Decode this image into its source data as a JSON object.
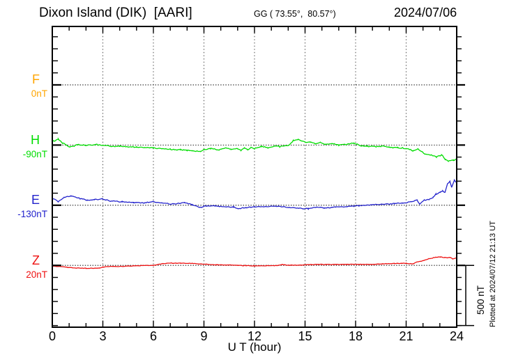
{
  "header": {
    "station": "Dixon Island (DIK)  [AARI]",
    "coords": "GG ( 73.55°,  80.57°)",
    "date": "2024/07/06"
  },
  "side_note": "Plotted at 2024/07/12 21:13 UT",
  "scale_bar": {
    "label": "500 nT",
    "nT": 500
  },
  "axis": {
    "xlabel": "U T (hour)",
    "tick_labels": [
      "0",
      "3",
      "6",
      "9",
      "12",
      "15",
      "18",
      "21",
      "24"
    ],
    "tick_hours": [
      0,
      3,
      6,
      9,
      12,
      15,
      18,
      21,
      24
    ],
    "minor_tick_every_hours": 1,
    "x_range": [
      0,
      24
    ],
    "nT_per_division": 100
  },
  "colors": {
    "frame": "#000000",
    "grid": "#555555",
    "baseline": "#1a1a1a",
    "F": "#FFA500",
    "H": "#00DD00",
    "E": "#2222CC",
    "Z": "#EE1111"
  },
  "chart_data": {
    "type": "line",
    "title": "Dixon Island (DIK) [AARI]",
    "xlabel": "U T (hour)",
    "x_range": [
      0,
      24
    ],
    "grid": "dotted vertical every 3 h, dotted horizontal baseline per component",
    "legend_position": "left margin, one colored letter per component",
    "scale_bar_nT": 500,
    "series": [
      {
        "label": "F",
        "baseline_label": "0nT",
        "baseline_nT": 0,
        "color": "#FFA500",
        "units": "nT relative to baseline",
        "points": []
      },
      {
        "label": "H",
        "baseline_label": "-90nT",
        "baseline_nT": -90,
        "color": "#00DD00",
        "units": "nT relative to baseline",
        "points": [
          [
            0,
            26
          ],
          [
            0.35,
            49
          ],
          [
            0.6,
            17
          ],
          [
            0.85,
            0
          ],
          [
            1.05,
            -17
          ],
          [
            1.3,
            -8
          ],
          [
            1.5,
            3
          ],
          [
            2,
            0
          ],
          [
            2.5,
            3
          ],
          [
            3,
            0
          ],
          [
            3.5,
            -9
          ],
          [
            4,
            -12
          ],
          [
            4.5,
            -14
          ],
          [
            5,
            -17
          ],
          [
            5.5,
            -19
          ],
          [
            6,
            -23
          ],
          [
            6.5,
            -29
          ],
          [
            7,
            -35
          ],
          [
            7.6,
            -39
          ],
          [
            8,
            -44
          ],
          [
            8.3,
            -48
          ],
          [
            8.8,
            -54
          ],
          [
            9,
            -39
          ],
          [
            9.4,
            -29
          ],
          [
            9.9,
            -39
          ],
          [
            10.3,
            -23
          ],
          [
            10.6,
            -35
          ],
          [
            11,
            -29
          ],
          [
            11.2,
            -46
          ],
          [
            11.4,
            -23
          ],
          [
            11.6,
            -40
          ],
          [
            11.8,
            -17
          ],
          [
            12,
            -29
          ],
          [
            12.4,
            -12
          ],
          [
            12.8,
            -23
          ],
          [
            13.2,
            -9
          ],
          [
            13.5,
            -12
          ],
          [
            14,
            -6
          ],
          [
            14.3,
            40
          ],
          [
            14.6,
            46
          ],
          [
            15,
            23
          ],
          [
            15.3,
            29
          ],
          [
            15.6,
            12
          ],
          [
            15.9,
            23
          ],
          [
            16.2,
            6
          ],
          [
            16.6,
            12
          ],
          [
            17,
            0
          ],
          [
            17.5,
            6
          ],
          [
            17.9,
            17
          ],
          [
            18.3,
            -6
          ],
          [
            18.7,
            -9
          ],
          [
            19,
            -12
          ],
          [
            19.5,
            -9
          ],
          [
            20,
            -17
          ],
          [
            20.5,
            -23
          ],
          [
            21,
            -29
          ],
          [
            21.4,
            -46
          ],
          [
            21.7,
            -35
          ],
          [
            22.1,
            -75
          ],
          [
            22.5,
            -81
          ],
          [
            22.8,
            -98
          ],
          [
            23.1,
            -81
          ],
          [
            23.3,
            -116
          ],
          [
            23.5,
            -133
          ],
          [
            23.8,
            -127
          ],
          [
            24,
            -116
          ]
        ]
      },
      {
        "label": "E",
        "baseline_label": "-130nT",
        "baseline_nT": -130,
        "color": "#2222CC",
        "units": "nT relative to baseline",
        "points": [
          [
            0,
            58
          ],
          [
            0.35,
            29
          ],
          [
            0.7,
            64
          ],
          [
            1.1,
            76
          ],
          [
            1.65,
            55
          ],
          [
            2.07,
            43
          ],
          [
            2.5,
            46
          ],
          [
            2.97,
            52
          ],
          [
            3.45,
            35
          ],
          [
            4.14,
            29
          ],
          [
            4.83,
            23
          ],
          [
            5.5,
            20
          ],
          [
            6,
            30
          ],
          [
            6.5,
            17
          ],
          [
            7.2,
            10
          ],
          [
            7.85,
            23
          ],
          [
            8.3,
            4
          ],
          [
            8.8,
            -19
          ],
          [
            9,
            -9
          ],
          [
            9.65,
            -4
          ],
          [
            10.2,
            -14
          ],
          [
            10.75,
            -15
          ],
          [
            11.03,
            -29
          ],
          [
            11.5,
            -20
          ],
          [
            12,
            -12
          ],
          [
            12.7,
            -12
          ],
          [
            13.4,
            -8
          ],
          [
            14.07,
            -19
          ],
          [
            14.9,
            -29
          ],
          [
            15.2,
            -29
          ],
          [
            15.7,
            -15
          ],
          [
            16.14,
            -23
          ],
          [
            16.8,
            -15
          ],
          [
            17.5,
            -12
          ],
          [
            17.9,
            -8
          ],
          [
            18.2,
            -4
          ],
          [
            18.9,
            4
          ],
          [
            19.6,
            8
          ],
          [
            20.3,
            14
          ],
          [
            20.8,
            20
          ],
          [
            21,
            20
          ],
          [
            21.4,
            33
          ],
          [
            21.65,
            43
          ],
          [
            21.8,
            8
          ],
          [
            22.07,
            43
          ],
          [
            22.35,
            46
          ],
          [
            22.6,
            66
          ],
          [
            22.76,
            91
          ],
          [
            23.03,
            110
          ],
          [
            23.17,
            120
          ],
          [
            23.3,
            104
          ],
          [
            23.45,
            177
          ],
          [
            23.6,
            197
          ],
          [
            23.7,
            149
          ],
          [
            23.86,
            206
          ],
          [
            24,
            187
          ]
        ]
      },
      {
        "label": "Z",
        "baseline_label": "20nT",
        "baseline_nT": 20,
        "color": "#EE1111",
        "units": "nT relative to baseline",
        "points": [
          [
            0,
            -6
          ],
          [
            0.5,
            -10
          ],
          [
            1.2,
            -20
          ],
          [
            2,
            -25
          ],
          [
            2.8,
            -23
          ],
          [
            3,
            -14
          ],
          [
            3.5,
            -8
          ],
          [
            4.1,
            -9
          ],
          [
            4.8,
            -4
          ],
          [
            5.5,
            0
          ],
          [
            6,
            0
          ],
          [
            6.5,
            14
          ],
          [
            7,
            19
          ],
          [
            7.6,
            17
          ],
          [
            8.3,
            17
          ],
          [
            9,
            10
          ],
          [
            9.7,
            4
          ],
          [
            10.5,
            3
          ],
          [
            11,
            0
          ],
          [
            11.5,
            -2
          ],
          [
            12,
            -4
          ],
          [
            12.7,
            -3
          ],
          [
            13.4,
            0
          ],
          [
            13.65,
            6
          ],
          [
            14.1,
            1
          ],
          [
            14.8,
            3
          ],
          [
            15.4,
            7
          ],
          [
            16,
            8
          ],
          [
            16.8,
            8
          ],
          [
            17.5,
            9
          ],
          [
            18.3,
            9
          ],
          [
            18.9,
            9
          ],
          [
            19.6,
            12
          ],
          [
            20.3,
            15
          ],
          [
            21,
            18
          ],
          [
            21.4,
            12
          ],
          [
            21.65,
            29
          ],
          [
            21.9,
            35
          ],
          [
            22.35,
            55
          ],
          [
            22.76,
            68
          ],
          [
            23.03,
            70
          ],
          [
            23.3,
            64
          ],
          [
            23.6,
            66
          ],
          [
            23.76,
            55
          ],
          [
            24,
            64
          ]
        ]
      }
    ]
  }
}
